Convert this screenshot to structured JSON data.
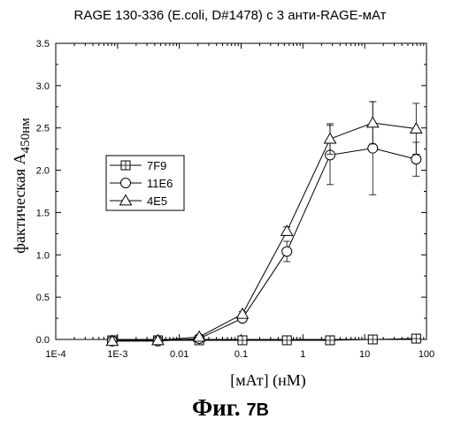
{
  "chart_data": {
    "type": "line",
    "title": "RAGE 130-336 (E.coli, D#1478)  с 3 анти-RAGE-мАт",
    "xlabel": "[мАт] (нМ)",
    "ylabel": "фактическая A",
    "ylabel_sub": "450нм",
    "xscale": "log",
    "xlim": [
      0.0001,
      100
    ],
    "ylim": [
      0,
      3.5
    ],
    "x_ticks": [
      0.0001,
      0.001,
      0.01,
      0.1,
      1,
      10,
      100
    ],
    "x_tick_labels": [
      "1E-4",
      "1E-3",
      "0.01",
      "0.1",
      "1",
      "10",
      "100"
    ],
    "y_ticks": [
      0.0,
      0.5,
      1.0,
      1.5,
      2.0,
      2.5,
      3.0,
      3.5
    ],
    "y_tick_labels": [
      "0.0",
      "0.5",
      "1.0",
      "1.5",
      "2.0",
      "2.5",
      "3.0",
      "3.5"
    ],
    "grid": false,
    "legend_position": "left-middle",
    "x": [
      0.00082,
      0.0045,
      0.021,
      0.105,
      0.55,
      2.75,
      13.5,
      68
    ],
    "series": [
      {
        "name": "7F9",
        "marker": "square",
        "values": [
          -0.01,
          -0.01,
          -0.01,
          -0.01,
          -0.01,
          -0.01,
          0.0,
          0.01
        ],
        "errors": [
          0,
          0,
          0,
          0,
          0,
          0,
          0,
          0
        ]
      },
      {
        "name": "11E6",
        "marker": "circle",
        "values": [
          -0.02,
          -0.02,
          0.01,
          0.25,
          1.04,
          2.18,
          2.26,
          2.13
        ],
        "errors": [
          0,
          0,
          0.02,
          0.03,
          0.12,
          0.35,
          0.55,
          0.2
        ]
      },
      {
        "name": "4E5",
        "marker": "triangle",
        "values": [
          -0.02,
          -0.01,
          0.03,
          0.3,
          1.28,
          2.37,
          2.56,
          2.49
        ],
        "errors": [
          0,
          0,
          0.02,
          0.03,
          0.05,
          0.18,
          0.25,
          0.3
        ]
      }
    ]
  },
  "caption": {
    "main": "Фиг. ",
    "sub": "7B"
  }
}
